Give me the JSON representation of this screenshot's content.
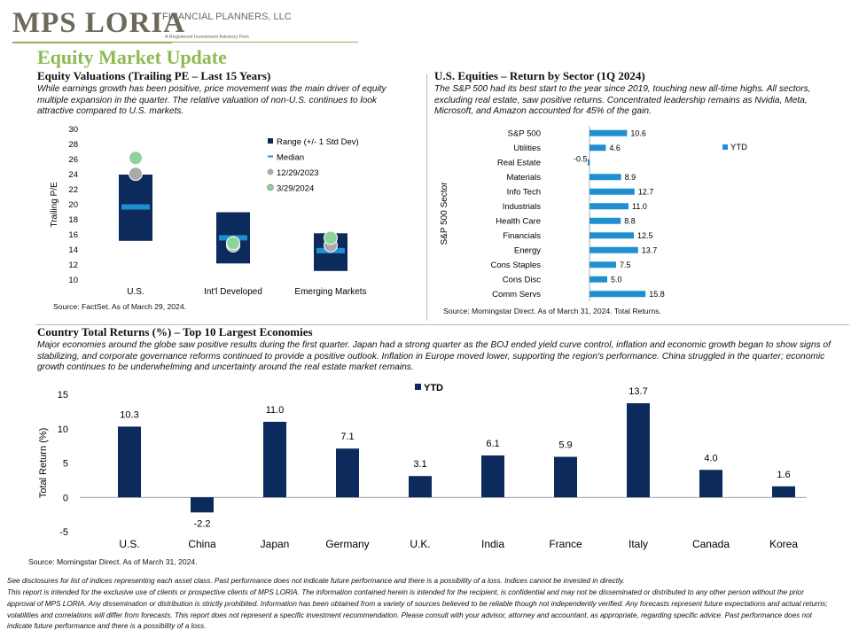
{
  "header": {
    "logo_text": "MPS LORIA",
    "logo_sub": "FINANCIAL PLANNERS, LLC",
    "logo_tagline": "A Registered Investment Advisory Firm",
    "title": "Equity Market Update"
  },
  "valuations": {
    "title": "Equity Valuations (Trailing PE – Last 15 Years)",
    "body": "While earnings growth has been positive, price movement was the main driver of equity multiple expansion in the quarter. The relative valuation of non-U.S. continues to look attractive compared to U.S. markets.",
    "source": "Source: FactSet. As of March 29, 2024."
  },
  "sectors": {
    "title": "U.S. Equities – Return by Sector (1Q 2024)",
    "body": "The S&P 500 had its best start to the year since 2019, touching new all-time highs. All sectors, excluding real estate, saw positive returns. Concentrated leadership remains as Nvidia, Meta, Microsoft, and Amazon accounted for 45% of the gain.",
    "source": "Source: Morningstar Direct. As of March 31, 2024. Total Returns."
  },
  "countries": {
    "title": "Country Total Returns (%) – Top 10 Largest Economies",
    "body": "Major economies around the globe saw positive results during the first quarter. Japan had a strong quarter as the BOJ ended yield curve control, inflation and economic growth began to show signs of stabilizing, and corporate governance reforms continued to provide a positive outlook. Inflation in Europe moved lower, supporting the region's performance. China struggled in the quarter; economic growth continues to be underwhelming and uncertainty around the real estate market remains.",
    "source": "Source: Morningstar Direct. As of March 31, 2024."
  },
  "disclosures": {
    "line1": "See disclosures for list of indices representing each asset class. Past performance does not indicate future performance and there is a possibility of a loss. Indices cannot be invested in directly.",
    "line2": "This report is intended for the exclusive use of clients or prospective clients of MPS LORIA. The information contained herein is intended for the recipient, is confidential and may not be disseminated or distributed to any other person without the prior approval of MPS LORIA. Any dissemination or distribution is strictly prohibited. Information has been obtained from a variety of sources believed to be reliable though not independently verified. Any forecasts represent future expectations and actual returns; volatilities and correlations will differ from forecasts. This report does not represent a specific investment recommendation. Please consult with your advisor, attorney and accountant, as appropriate, regarding specific advice. Past performance does not indicate future performance and there is a possibility of a loss."
  },
  "colors": {
    "navy": "#0c2a5c",
    "light_blue": "#1f8fd0",
    "gray_dot": "#aaaaaa",
    "green_dot": "#8fd39c",
    "brand_green": "#8bbb52"
  },
  "chart_data": [
    {
      "id": "valuations",
      "type": "range",
      "title": "",
      "ylabel": "Trailing P/E",
      "ylim": [
        10,
        30
      ],
      "yticks": [
        10,
        12,
        14,
        16,
        18,
        20,
        22,
        24,
        26,
        28,
        30
      ],
      "categories": [
        "U.S.",
        "Int'l Developed",
        "Emerging Markets"
      ],
      "legend": [
        "Range (+/- 1 Std Dev)",
        "Median",
        "12/29/2023",
        "3/29/2024"
      ],
      "legend_position": "top-right",
      "range_low": [
        15.2,
        12.2,
        11.2
      ],
      "range_high": [
        24.0,
        19.0,
        16.2
      ],
      "median": [
        19.7,
        15.6,
        13.9
      ],
      "dec_2023": [
        24.1,
        14.6,
        14.6
      ],
      "mar_2024": [
        26.2,
        14.9,
        15.6
      ]
    },
    {
      "id": "sectors",
      "type": "bar",
      "orientation": "horizontal",
      "ylabel": "S&P 500 Sector",
      "legend": [
        "YTD"
      ],
      "legend_position": "right",
      "categories": [
        "S&P 500",
        "Utilities",
        "Real Estate",
        "Materials",
        "Info Tech",
        "Industrials",
        "Health Care",
        "Financials",
        "Energy",
        "Cons Staples",
        "Cons Disc",
        "Comm Servs"
      ],
      "values": [
        10.6,
        4.6,
        -0.5,
        8.9,
        12.7,
        11.0,
        8.8,
        12.5,
        13.7,
        7.5,
        5.0,
        15.8
      ],
      "labels": [
        "10.6",
        "4.6",
        "-0.5",
        "8.9",
        "12.7",
        "11.0",
        "8.8",
        "12.5",
        "13.7",
        "7.5",
        "5.0",
        "15.8"
      ]
    },
    {
      "id": "countries",
      "type": "bar",
      "ylabel": "Total Return (%)",
      "ylim": [
        -5,
        15
      ],
      "yticks": [
        -5,
        0,
        5,
        10,
        15
      ],
      "legend": [
        "YTD"
      ],
      "legend_position": "top",
      "categories": [
        "U.S.",
        "China",
        "Japan",
        "Germany",
        "U.K.",
        "India",
        "France",
        "Italy",
        "Canada",
        "Korea"
      ],
      "values": [
        10.3,
        -2.2,
        11.0,
        7.1,
        3.1,
        6.1,
        5.9,
        13.7,
        4.0,
        1.6
      ],
      "labels": [
        "10.3",
        "-2.2",
        "11.0",
        "7.1",
        "3.1",
        "6.1",
        "5.9",
        "13.7",
        "4.0",
        "1.6"
      ]
    }
  ]
}
